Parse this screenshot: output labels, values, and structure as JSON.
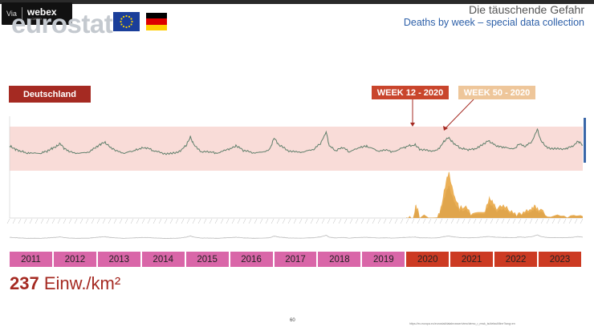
{
  "app": {
    "via_label": "Via",
    "brand_name": "webex",
    "brand_sub": "by CISCO"
  },
  "header": {
    "logo_text": "eurostat",
    "title": "Die täuschende Gefahr",
    "subtitle": "Deaths by week – special data collection"
  },
  "region_label": "Deutschland",
  "markers": [
    {
      "label": "WEEK 12 - 2020",
      "color": "#c9452c"
    },
    {
      "label": "WEEK 50 - 2020",
      "color": "#eec69a"
    }
  ],
  "colors": {
    "band": "#f9dcd8",
    "weekly_line": "#5f7f6b",
    "covid_deaths": "#e8a23a",
    "other_deaths": "#9a9a9a",
    "year_pre": "#d966a8",
    "year_post": "#cc3a22",
    "accent": "#a52a22",
    "axis_right": "#3a66a8"
  },
  "density": {
    "number": "237",
    "unit": "Einw./km²"
  },
  "page_number": "60",
  "source": "https://ec.europa.eu/eurostat/databrowser/view/demo_r_mwk_ts/default/line?lang=en",
  "chart_data": {
    "type": "line",
    "title": "",
    "xlabel": "",
    "ylabel": "",
    "x_range": [
      2011,
      2024
    ],
    "series": [
      {
        "points": [
          [
            2011.0,
            1.0
          ],
          [
            2011.1,
            0.88
          ],
          [
            2011.2,
            0.8
          ],
          [
            2011.35,
            0.7
          ],
          [
            2011.5,
            0.66
          ],
          [
            2011.7,
            0.68
          ],
          [
            2011.85,
            0.76
          ],
          [
            2011.95,
            0.88
          ],
          [
            2012.05,
            0.96
          ],
          [
            2012.15,
            1.1
          ],
          [
            2012.25,
            0.86
          ],
          [
            2012.4,
            0.72
          ],
          [
            2012.6,
            0.66
          ],
          [
            2012.8,
            0.74
          ],
          [
            2012.95,
            0.92
          ],
          [
            2013.05,
            1.06
          ],
          [
            2013.15,
            1.16
          ],
          [
            2013.25,
            1.0
          ],
          [
            2013.4,
            0.78
          ],
          [
            2013.6,
            0.68
          ],
          [
            2013.8,
            0.76
          ],
          [
            2013.95,
            0.88
          ],
          [
            2014.1,
            0.92
          ],
          [
            2014.25,
            0.8
          ],
          [
            2014.45,
            0.68
          ],
          [
            2014.65,
            0.64
          ],
          [
            2014.85,
            0.76
          ],
          [
            2015.0,
            1.0
          ],
          [
            2015.1,
            1.4
          ],
          [
            2015.18,
            1.04
          ],
          [
            2015.35,
            0.74
          ],
          [
            2015.55,
            0.72
          ],
          [
            2015.7,
            0.68
          ],
          [
            2015.9,
            0.8
          ],
          [
            2016.05,
            0.92
          ],
          [
            2016.15,
            1.0
          ],
          [
            2016.3,
            0.8
          ],
          [
            2016.5,
            0.7
          ],
          [
            2016.7,
            0.7
          ],
          [
            2016.9,
            0.84
          ],
          [
            2017.0,
            1.36
          ],
          [
            2017.1,
            1.06
          ],
          [
            2017.3,
            0.8
          ],
          [
            2017.5,
            0.72
          ],
          [
            2017.7,
            0.74
          ],
          [
            2017.9,
            0.86
          ],
          [
            2018.05,
            1.1
          ],
          [
            2018.18,
            1.62
          ],
          [
            2018.25,
            1.0
          ],
          [
            2018.4,
            0.78
          ],
          [
            2018.55,
            0.94
          ],
          [
            2018.7,
            0.74
          ],
          [
            2018.9,
            0.88
          ],
          [
            2019.05,
            1.0
          ],
          [
            2019.15,
            0.94
          ],
          [
            2019.35,
            0.78
          ],
          [
            2019.55,
            0.8
          ],
          [
            2019.7,
            0.74
          ],
          [
            2019.9,
            0.9
          ],
          [
            2020.05,
            1.0
          ],
          [
            2020.2,
            1.04
          ],
          [
            2020.3,
            0.86
          ],
          [
            2020.5,
            0.78
          ],
          [
            2020.7,
            0.8
          ],
          [
            2020.85,
            1.18
          ],
          [
            2020.95,
            1.38
          ],
          [
            2021.05,
            1.16
          ],
          [
            2021.2,
            0.92
          ],
          [
            2021.35,
            0.84
          ],
          [
            2021.5,
            0.84
          ],
          [
            2021.65,
            0.94
          ],
          [
            2021.85,
            1.24
          ],
          [
            2021.95,
            1.1
          ],
          [
            2022.1,
            0.96
          ],
          [
            2022.25,
            0.94
          ],
          [
            2022.45,
            0.86
          ],
          [
            2022.55,
            1.08
          ],
          [
            2022.7,
            0.98
          ],
          [
            2022.85,
            1.2
          ],
          [
            2022.97,
            1.74
          ],
          [
            2023.05,
            1.22
          ],
          [
            2023.2,
            0.92
          ],
          [
            2023.4,
            0.86
          ],
          [
            2023.6,
            0.88
          ],
          [
            2023.75,
            0.96
          ],
          [
            2023.9,
            1.2
          ],
          [
            2024.0,
            1.04
          ]
        ]
      },
      {
        "points": [
          [
            2020.0,
            0.0
          ],
          [
            2020.15,
            0.0
          ],
          [
            2020.22,
            0.3
          ],
          [
            2020.3,
            0.05
          ],
          [
            2020.7,
            0.0
          ],
          [
            2020.8,
            0.3
          ],
          [
            2020.9,
            0.8
          ],
          [
            2020.96,
            1.0
          ],
          [
            2021.02,
            0.75
          ],
          [
            2021.1,
            0.45
          ],
          [
            2021.2,
            0.22
          ],
          [
            2021.35,
            0.25
          ],
          [
            2021.5,
            0.06
          ],
          [
            2021.75,
            0.1
          ],
          [
            2021.88,
            0.45
          ],
          [
            2021.95,
            0.35
          ],
          [
            2022.05,
            0.22
          ],
          [
            2022.2,
            0.28
          ],
          [
            2022.35,
            0.16
          ],
          [
            2022.5,
            0.08
          ],
          [
            2022.65,
            0.12
          ],
          [
            2022.8,
            0.2
          ],
          [
            2022.9,
            0.26
          ],
          [
            2023.0,
            0.2
          ],
          [
            2023.2,
            0.06
          ],
          [
            2023.5,
            0.03
          ],
          [
            2023.8,
            0.08
          ],
          [
            2024.0,
            0.04
          ]
        ]
      }
    ],
    "legend": "none",
    "grid": false
  },
  "years": [
    {
      "label": "2011",
      "color": "#d966a8"
    },
    {
      "label": "2012",
      "color": "#d966a8"
    },
    {
      "label": "2013",
      "color": "#d966a8"
    },
    {
      "label": "2014",
      "color": "#d966a8"
    },
    {
      "label": "2015",
      "color": "#d966a8"
    },
    {
      "label": "2016",
      "color": "#d966a8"
    },
    {
      "label": "2017",
      "color": "#d966a8"
    },
    {
      "label": "2018",
      "color": "#d966a8"
    },
    {
      "label": "2019",
      "color": "#d966a8"
    },
    {
      "label": "2020",
      "color": "#cc3a22"
    },
    {
      "label": "2021",
      "color": "#cc3a22"
    },
    {
      "label": "2022",
      "color": "#cc3a22"
    },
    {
      "label": "2023",
      "color": "#cc3a22"
    }
  ]
}
